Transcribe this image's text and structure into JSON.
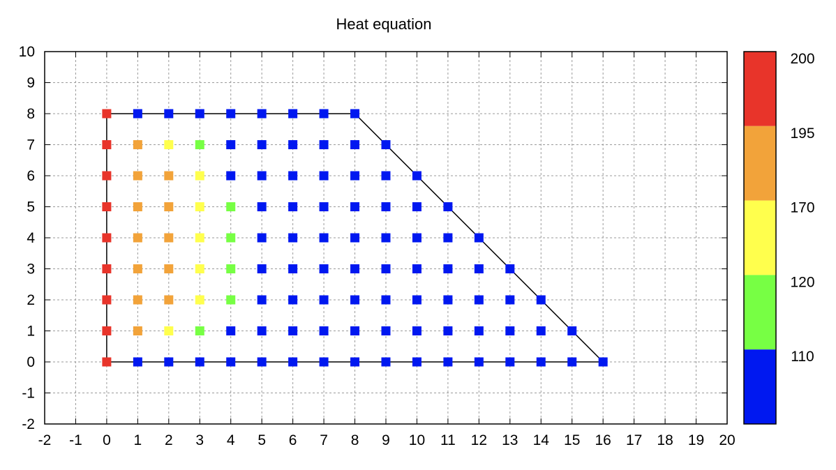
{
  "chart_data": {
    "type": "scatter",
    "title": "Heat equation",
    "xlabel": "",
    "ylabel": "",
    "xlim": [
      -2,
      20
    ],
    "ylim": [
      -2,
      10
    ],
    "x_ticks": [
      "-2",
      "-1",
      "0",
      "1",
      "2",
      "3",
      "4",
      "5",
      "6",
      "7",
      "8",
      "9",
      "10",
      "11",
      "12",
      "13",
      "14",
      "15",
      "16",
      "17",
      "18",
      "19",
      "20"
    ],
    "y_ticks": [
      "-2",
      "-1",
      "0",
      "1",
      "2",
      "3",
      "4",
      "5",
      "6",
      "7",
      "8",
      "9",
      "10"
    ],
    "grid": true,
    "boundary": [
      [
        0,
        0
      ],
      [
        16,
        0
      ],
      [
        8,
        8
      ],
      [
        0,
        8
      ],
      [
        0,
        0
      ]
    ],
    "colorbar": {
      "position": "right",
      "bands": [
        {
          "label": "200",
          "color": "#e8342a"
        },
        {
          "label": "195",
          "color": "#f2a33a"
        },
        {
          "label": "170",
          "color": "#ffff4d"
        },
        {
          "label": "120",
          "color": "#77ff44"
        },
        {
          "label": "110",
          "color": "#0018f0"
        }
      ]
    },
    "point_colors": {
      "red": "#e8342a",
      "orange": "#f2a33a",
      "yellow": "#ffff4d",
      "green": "#77ff44",
      "blue": "#0018f0"
    },
    "rows": [
      {
        "y": 8,
        "cells": [
          "red",
          "blue",
          "blue",
          "blue",
          "blue",
          "blue",
          "blue",
          "blue",
          "blue"
        ]
      },
      {
        "y": 7,
        "cells": [
          "red",
          "orange",
          "yellow",
          "green",
          "blue",
          "blue",
          "blue",
          "blue",
          "blue",
          "blue"
        ]
      },
      {
        "y": 6,
        "cells": [
          "red",
          "orange",
          "orange",
          "yellow",
          "blue",
          "blue",
          "blue",
          "blue",
          "blue",
          "blue",
          "blue"
        ]
      },
      {
        "y": 5,
        "cells": [
          "red",
          "orange",
          "orange",
          "yellow",
          "green",
          "blue",
          "blue",
          "blue",
          "blue",
          "blue",
          "blue",
          "blue"
        ]
      },
      {
        "y": 4,
        "cells": [
          "red",
          "orange",
          "orange",
          "yellow",
          "green",
          "blue",
          "blue",
          "blue",
          "blue",
          "blue",
          "blue",
          "blue",
          "blue"
        ]
      },
      {
        "y": 3,
        "cells": [
          "red",
          "orange",
          "orange",
          "yellow",
          "green",
          "blue",
          "blue",
          "blue",
          "blue",
          "blue",
          "blue",
          "blue",
          "blue",
          "blue"
        ]
      },
      {
        "y": 2,
        "cells": [
          "red",
          "orange",
          "orange",
          "yellow",
          "green",
          "blue",
          "blue",
          "blue",
          "blue",
          "blue",
          "blue",
          "blue",
          "blue",
          "blue",
          "blue"
        ]
      },
      {
        "y": 1,
        "cells": [
          "red",
          "orange",
          "yellow",
          "green",
          "blue",
          "blue",
          "blue",
          "blue",
          "blue",
          "blue",
          "blue",
          "blue",
          "blue",
          "blue",
          "blue",
          "blue"
        ]
      },
      {
        "y": 0,
        "cells": [
          "red",
          "blue",
          "blue",
          "blue",
          "blue",
          "blue",
          "blue",
          "blue",
          "blue",
          "blue",
          "blue",
          "blue",
          "blue",
          "blue",
          "blue",
          "blue",
          "blue"
        ]
      }
    ]
  }
}
